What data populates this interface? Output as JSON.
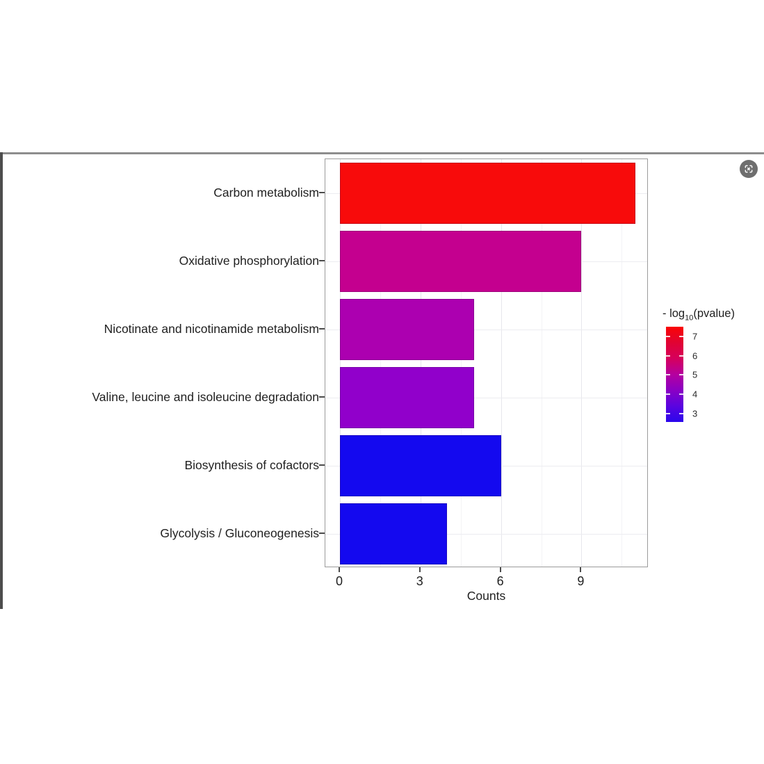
{
  "icons": {
    "top_right": "screen-capture-icon"
  },
  "chart_data": {
    "type": "bar",
    "orientation": "horizontal",
    "title": "",
    "xlabel": "Counts",
    "ylabel": "",
    "categories": [
      "Carbon metabolism",
      "Oxidative phosphorylation",
      "Nicotinate and nicotinamide metabolism",
      "Valine, leucine and isoleucine degradation",
      "Biosynthesis of cofactors",
      "Glycolysis / Gluconeogenesis"
    ],
    "values": [
      11,
      9,
      5,
      5,
      6,
      4
    ],
    "bar_colors": [
      "#f80b0b",
      "#c4008f",
      "#ac00b0",
      "#9100cb",
      "#1409ef",
      "#1409ef"
    ],
    "neg_log10_pvalue_est": [
      7.2,
      5.6,
      5.0,
      4.5,
      3.0,
      3.0
    ],
    "x_ticks": [
      0,
      3,
      6,
      9
    ],
    "x_minor_ticks": [
      1.5,
      4.5,
      7.5,
      10.5
    ],
    "xlim": [
      0,
      11.5
    ],
    "grid": "major+minor",
    "legend": {
      "position": "right",
      "title_prefix": "- log",
      "title_sub": "10",
      "title_suffix": "(pvalue)",
      "ticks": [
        7,
        6,
        5,
        4,
        3
      ],
      "scale_top_value": 7.5,
      "scale_bottom_value": 2.55,
      "gradient_colors_top_to_bottom": [
        "#fa0505",
        "#e10333",
        "#d6005c",
        "#b5009f",
        "#8a00c4",
        "#5a04e0",
        "#2a06ec"
      ]
    }
  }
}
